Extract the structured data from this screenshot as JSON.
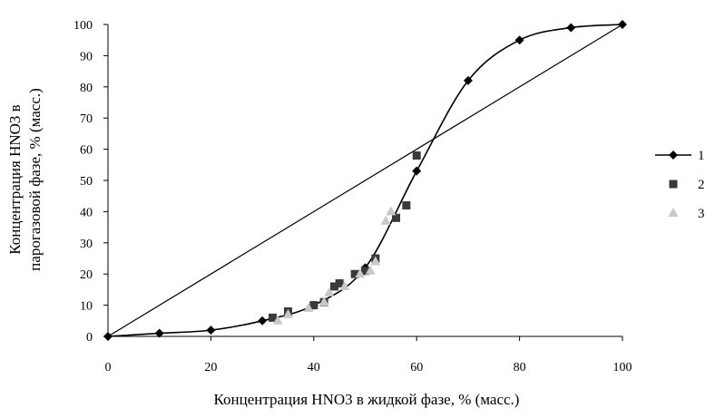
{
  "chart_data": {
    "type": "scatter",
    "title": "",
    "xlabel": "Концентрация HNO3 в жидкой фазе, % (масс.)",
    "ylabel_line1": "Концентрация HNO3 в",
    "ylabel_line2": "парогазовой фазе, % (масс.)",
    "xlim": [
      0,
      100
    ],
    "ylim": [
      0,
      100
    ],
    "xticks": [
      0,
      20,
      40,
      60,
      80,
      100
    ],
    "yticks": [
      0,
      10,
      20,
      30,
      40,
      50,
      60,
      70,
      80,
      90,
      100
    ],
    "grid": false,
    "legend_position": "right",
    "diagonal": [
      [
        0,
        0
      ],
      [
        100,
        100
      ]
    ],
    "series": [
      {
        "name": "1",
        "marker": "diamond",
        "color": "#000000",
        "line": true,
        "x": [
          0,
          10,
          20,
          30,
          40,
          50,
          60,
          70,
          80,
          90,
          100
        ],
        "y": [
          0,
          1,
          2,
          5,
          10,
          22,
          53,
          82,
          95,
          99,
          100
        ]
      },
      {
        "name": "2",
        "marker": "square",
        "color": "#3a3a3a",
        "line": false,
        "x": [
          32,
          35,
          40,
          42,
          44,
          45,
          48,
          50,
          52,
          56,
          58,
          60
        ],
        "y": [
          6,
          8,
          10,
          11,
          16,
          17,
          20,
          21,
          25,
          38,
          42,
          58
        ]
      },
      {
        "name": "3",
        "marker": "triangle",
        "color": "#c8c8c8",
        "line": false,
        "x": [
          33,
          35,
          39,
          42,
          43,
          46,
          49,
          51,
          52,
          54,
          55
        ],
        "y": [
          5,
          7,
          9,
          11,
          14,
          16,
          20,
          21,
          24,
          37,
          40
        ]
      }
    ]
  }
}
